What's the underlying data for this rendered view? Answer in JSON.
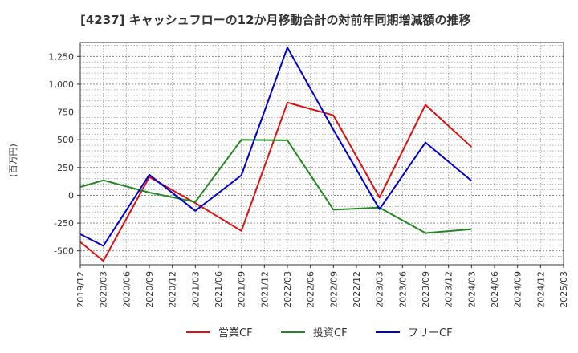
{
  "chart_data": {
    "type": "line",
    "title": "[4237]  キャッシュフローの12か月移動合計の対前年同期増減額の推移",
    "xlabel": "",
    "ylabel": "(百万円)",
    "ylim": [
      -625,
      1375
    ],
    "yticks": [
      -500,
      -250,
      0,
      250,
      500,
      750,
      1000,
      1250
    ],
    "ytick_labels": [
      "-500",
      "-250",
      "0",
      "250",
      "500",
      "750",
      "1,000",
      "1,250"
    ],
    "categories": [
      "2019/12",
      "2020/03",
      "2020/06",
      "2020/09",
      "2020/12",
      "2021/03",
      "2021/06",
      "2021/09",
      "2021/12",
      "2022/03",
      "2022/06",
      "2022/09",
      "2022/12",
      "2023/03",
      "2023/06",
      "2023/09",
      "2023/12",
      "2024/03",
      "2024/06",
      "2024/09",
      "2024/12",
      "2025/03"
    ],
    "grid": true,
    "legend_position": "bottom",
    "series": [
      {
        "name": "営業CF",
        "color": "#dd1111",
        "values": [
          -420,
          -590,
          null,
          165,
          null,
          -70,
          null,
          -320,
          null,
          835,
          null,
          720,
          null,
          -20,
          null,
          815,
          null,
          435,
          null,
          null,
          null,
          null
        ]
      },
      {
        "name": "投資CF",
        "color": "#228822",
        "values": [
          75,
          135,
          null,
          25,
          null,
          -60,
          null,
          500,
          null,
          495,
          null,
          -130,
          null,
          -110,
          null,
          -340,
          null,
          -305,
          null,
          null,
          null,
          null
        ]
      },
      {
        "name": "フリーCF",
        "color": "#0000cc",
        "values": [
          -350,
          -455,
          null,
          185,
          null,
          -140,
          null,
          180,
          null,
          1330,
          null,
          590,
          null,
          -125,
          null,
          475,
          null,
          130,
          null,
          null,
          null,
          null
        ]
      }
    ]
  }
}
